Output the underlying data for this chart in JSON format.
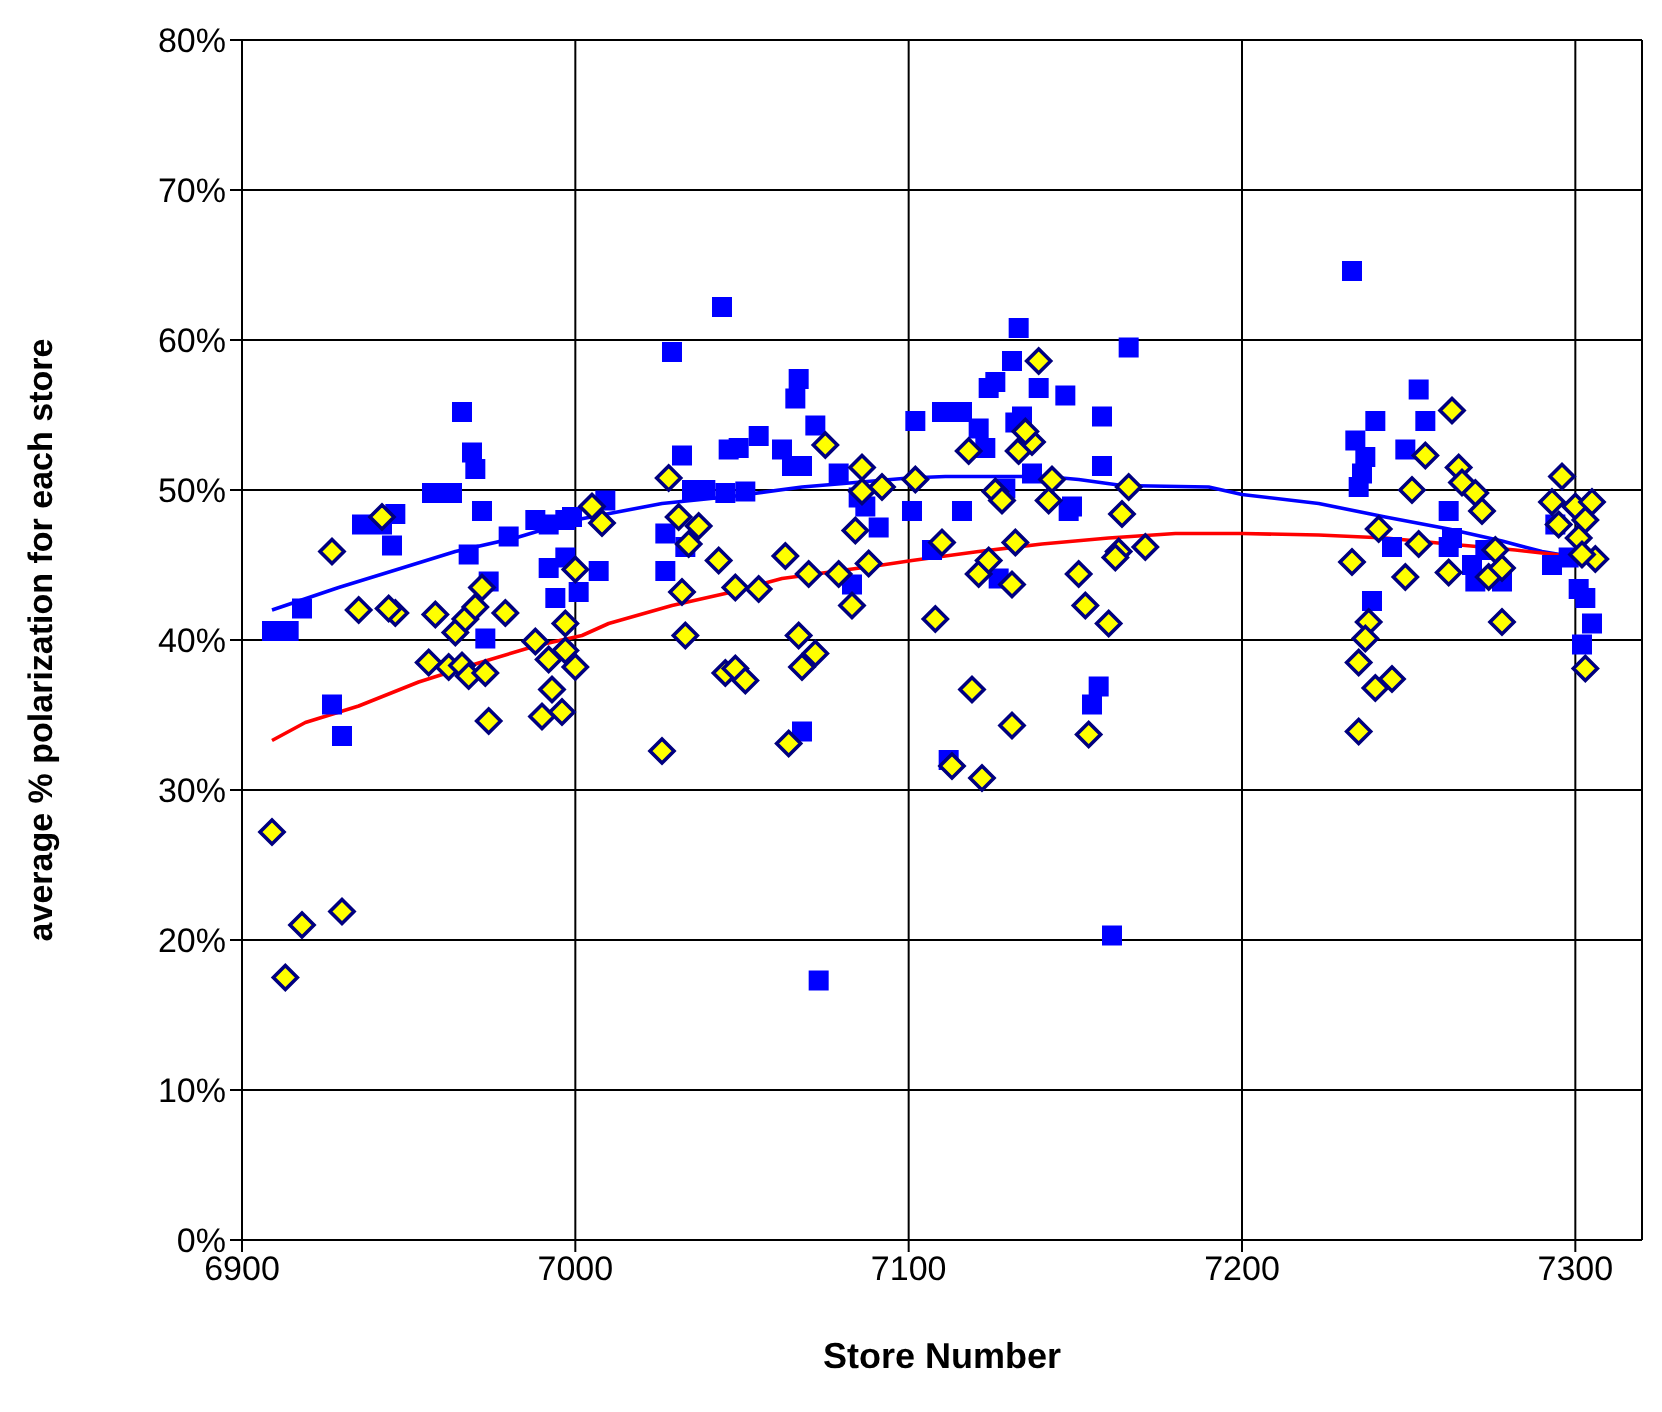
{
  "chart_data": {
    "type": "scatter",
    "xlabel": "Store Number",
    "ylabel": "average % polarization for each store",
    "xlim": [
      6900,
      7320
    ],
    "xticks": [
      6900,
      7000,
      7100,
      7200,
      7300
    ],
    "ylim": [
      0,
      80
    ],
    "yticks": [
      {
        "value": 0,
        "label": "0%"
      },
      {
        "value": 10,
        "label": "10%"
      },
      {
        "value": 20,
        "label": "20%"
      },
      {
        "value": 30,
        "label": "30%"
      },
      {
        "value": 40,
        "label": "40%"
      },
      {
        "value": 50,
        "label": "50%"
      },
      {
        "value": 60,
        "label": "60%"
      },
      {
        "value": 70,
        "label": "70%"
      },
      {
        "value": 80,
        "label": "80%"
      }
    ],
    "grid": true,
    "legend": false,
    "series": [
      {
        "marker": "square",
        "color": "#0000ff",
        "x": [
          6909,
          6914,
          6918,
          6927,
          6930,
          6936,
          6942,
          6946,
          6945,
          6957,
          6963,
          6966,
          6969,
          6970,
          6972,
          6968,
          6980,
          6974,
          6973,
          6988,
          6992,
          6997,
          6999,
          6992,
          6997,
          6994,
          7001,
          7007,
          7009,
          7029,
          7032,
          7035,
          7039,
          7045,
          7044,
          7027,
          7027,
          7033,
          7046,
          7049,
          7055,
          7051,
          7062,
          7065,
          7068,
          7067,
          7066,
          7072,
          7079,
          7085,
          7087,
          7091,
          7083,
          7068,
          7073,
          7101,
          7102,
          7110,
          7116,
          7121,
          7123,
          7124,
          7126,
          7131,
          7133,
          7134,
          7132,
          7139,
          7147,
          7137,
          7129,
          7116,
          7149,
          7148,
          7158,
          7158,
          7166,
          7127,
          7107,
          7112,
          7157,
          7155,
          7161,
          7233,
          7253,
          7255,
          7240,
          7234,
          7237,
          7236,
          7235,
          7249,
          7245,
          7239,
          7262,
          7263,
          7262,
          7269,
          7270,
          7278,
          7273,
          7294,
          7293,
          7298,
          7301,
          7303,
          7305,
          7302
        ],
        "values": [
          40.6,
          40.6,
          42.1,
          35.7,
          33.6,
          47.7,
          47.7,
          48.4,
          46.3,
          49.8,
          49.8,
          55.2,
          52.5,
          51.4,
          48.6,
          45.7,
          46.9,
          43.9,
          40.1,
          48,
          47.7,
          48,
          48.2,
          44.8,
          45.5,
          42.8,
          43.2,
          44.6,
          49.3,
          59.2,
          52.3,
          50,
          50,
          49.8,
          62.2,
          47.1,
          44.6,
          46.2,
          52.7,
          52.8,
          53.6,
          49.9,
          52.7,
          51.6,
          51.6,
          57.4,
          56.1,
          54.3,
          51.1,
          49.5,
          48.9,
          47.5,
          43.7,
          33.9,
          17.3,
          48.6,
          54.6,
          55.2,
          55.2,
          54.1,
          52.8,
          56.8,
          57.2,
          58.6,
          60.8,
          54.9,
          54.5,
          56.8,
          56.3,
          51.1,
          50.1,
          48.6,
          48.9,
          48.6,
          54.9,
          51.6,
          59.5,
          44.1,
          46,
          32,
          36.9,
          35.7,
          20.3,
          64.6,
          56.7,
          54.6,
          54.6,
          53.3,
          52.2,
          51.1,
          50.2,
          52.7,
          46.2,
          42.6,
          48.6,
          46.8,
          46.2,
          45,
          43.9,
          43.9,
          46,
          47.7,
          45,
          45.5,
          43.4,
          42.8,
          41.1,
          39.7
        ]
      },
      {
        "type": "scatter",
        "marker": "diamond",
        "color": "#ffff00",
        "x": [
          6909,
          6918,
          6913,
          6930,
          6927,
          6942,
          6935,
          6946,
          6944,
          6958,
          6956,
          6962,
          6966,
          6968,
          6973,
          6974,
          6964,
          6967,
          6970,
          6972,
          6979,
          6988,
          6992,
          6997,
          7000,
          6997,
          6993,
          6990,
          6996,
          7000,
          7005,
          7008,
          7026,
          7028,
          7031,
          7037,
          7034,
          7043,
          7032,
          7033,
          7045,
          7048,
          7055,
          7048,
          7051,
          7063,
          7070,
          7067,
          7072,
          7068,
          7064,
          7075,
          7086,
          7086,
          7092,
          7084,
          7088,
          7083,
          7079,
          7102,
          7110,
          7108,
          7119,
          7113,
          7122,
          7131,
          7118,
          7126,
          7128,
          7121,
          7124,
          7131,
          7132,
          7133,
          7137,
          7135,
          7139,
          7142,
          7143,
          7151,
          7153,
          7160,
          7154,
          7164,
          7166,
          7163,
          7162,
          7171,
          7263,
          7255,
          7265,
          7266,
          7270,
          7272,
          7251,
          7241,
          7253,
          7233,
          7249,
          7262,
          7274,
          7278,
          7276,
          7278,
          7238,
          7237,
          7235,
          7240,
          7245,
          7235,
          7296,
          7293,
          7295,
          7300,
          7305,
          7303,
          7301,
          7306,
          7302,
          7303
        ],
        "values": [
          27.2,
          21,
          17.5,
          21.9,
          45.9,
          48.2,
          42,
          41.8,
          42.1,
          41.7,
          38.5,
          38.2,
          38.3,
          37.6,
          37.8,
          34.6,
          40.5,
          41.4,
          42.2,
          43.5,
          41.8,
          39.9,
          38.7,
          39.3,
          38.2,
          41.1,
          36.7,
          34.9,
          35.2,
          44.7,
          48.9,
          47.8,
          32.6,
          50.8,
          48.2,
          47.6,
          46.4,
          45.3,
          43.2,
          40.3,
          37.8,
          43.5,
          43.4,
          38.1,
          37.3,
          45.6,
          44.4,
          40.3,
          39.1,
          38.2,
          33.1,
          53,
          51.5,
          49.9,
          50.2,
          47.3,
          45.1,
          42.3,
          44.4,
          50.7,
          46.5,
          41.4,
          36.7,
          31.6,
          30.8,
          34.3,
          52.6,
          49.9,
          49.3,
          44.4,
          45.3,
          43.7,
          46.5,
          52.6,
          53.2,
          53.9,
          58.6,
          49.3,
          50.7,
          44.4,
          42.3,
          41.1,
          33.7,
          48.4,
          50.2,
          45.9,
          45.5,
          46.2,
          55.3,
          52.3,
          51.5,
          50.5,
          49.8,
          48.6,
          50,
          47.4,
          46.4,
          45.2,
          44.2,
          44.5,
          44.2,
          44.8,
          46,
          41.2,
          41.2,
          40.1,
          38.5,
          36.8,
          37.4,
          33.9,
          50.9,
          49.2,
          47.7,
          48.9,
          49.2,
          48,
          46.8,
          45.4,
          45.7,
          38.1
        ]
      },
      {
        "type": "line",
        "marker": "none",
        "line_style": "solid",
        "color": "#0000ff",
        "x": [
          6909,
          6929,
          6948,
          6964,
          6982,
          7000,
          7026,
          7048,
          7068,
          7100,
          7111,
          7141,
          7151,
          7164,
          7190,
          7200,
          7223,
          7243,
          7262,
          7278,
          7290,
          7306
        ],
        "values": [
          42,
          43.5,
          44.8,
          45.9,
          46.8,
          48,
          49.1,
          49.6,
          50.2,
          50.8,
          50.9,
          50.9,
          50.7,
          50.3,
          50.2,
          49.7,
          49.1,
          48.2,
          47.4,
          46.6,
          45.9,
          45.3
        ]
      },
      {
        "type": "line",
        "marker": "none",
        "line_style": "solid",
        "color": "#ff0000",
        "x": [
          6909,
          6919,
          6935,
          6953,
          6970,
          6988,
          7002,
          7010,
          7029,
          7047,
          7062,
          7092,
          7101,
          7121,
          7140,
          7160,
          7180,
          7200,
          7223,
          7243,
          7262,
          7282,
          7294,
          7306
        ],
        "values": [
          33.3,
          34.5,
          35.6,
          37.2,
          38.4,
          39.6,
          40.3,
          41.1,
          42.3,
          43.2,
          44.1,
          45,
          45.3,
          45.9,
          46.4,
          46.8,
          47.1,
          47.1,
          47,
          46.8,
          46.4,
          46,
          45.7,
          45.3
        ]
      }
    ]
  }
}
